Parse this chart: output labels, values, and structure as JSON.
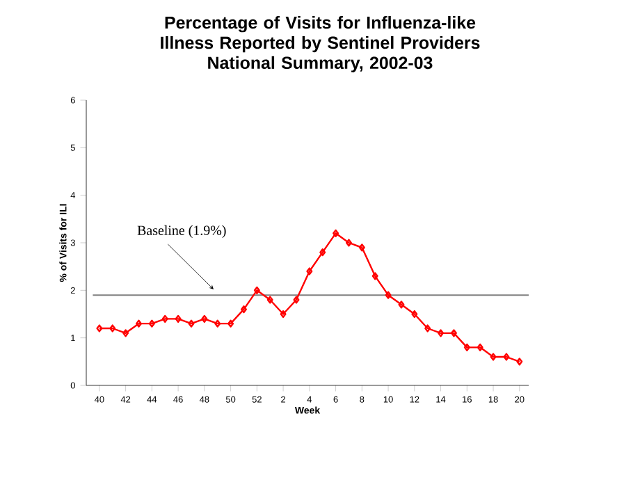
{
  "chart_data": {
    "type": "line",
    "title": "Percentage of Visits for Influenza-like Illness Reported by Sentinel Providers",
    "subtitle": "National Summary, 2002-03",
    "xlabel": "Week",
    "ylabel": "% of Visits for ILI",
    "categories": [
      "40",
      null,
      "42",
      null,
      "44",
      null,
      "46",
      null,
      "48",
      null,
      "50",
      null,
      "52",
      null,
      "2",
      null,
      "4",
      null,
      "6",
      null,
      "8",
      null,
      "10",
      null,
      "12",
      null,
      "14",
      null,
      "16",
      null,
      "18",
      null,
      "20"
    ],
    "series": [
      {
        "color": "#ff0000",
        "values": [
          1.2,
          1.2,
          1.1,
          1.3,
          1.3,
          1.4,
          1.4,
          1.3,
          1.4,
          1.3,
          1.3,
          1.6,
          2.0,
          1.8,
          1.5,
          1.8,
          2.4,
          2.8,
          3.2,
          3.0,
          2.9,
          2.3,
          1.9,
          1.7,
          1.5,
          1.2,
          1.1,
          1.1,
          0.8,
          0.8,
          0.6,
          0.6,
          0.5
        ]
      }
    ],
    "ylim": [
      0,
      6
    ],
    "yticks": [
      0,
      1,
      2,
      3,
      4,
      5,
      6
    ],
    "ref_lines": [
      {
        "axis": "y",
        "value": 1.9,
        "label": "Baseline (1.9%)",
        "color": "#808080"
      }
    ],
    "marker": "diamond",
    "line_style": "solid"
  }
}
